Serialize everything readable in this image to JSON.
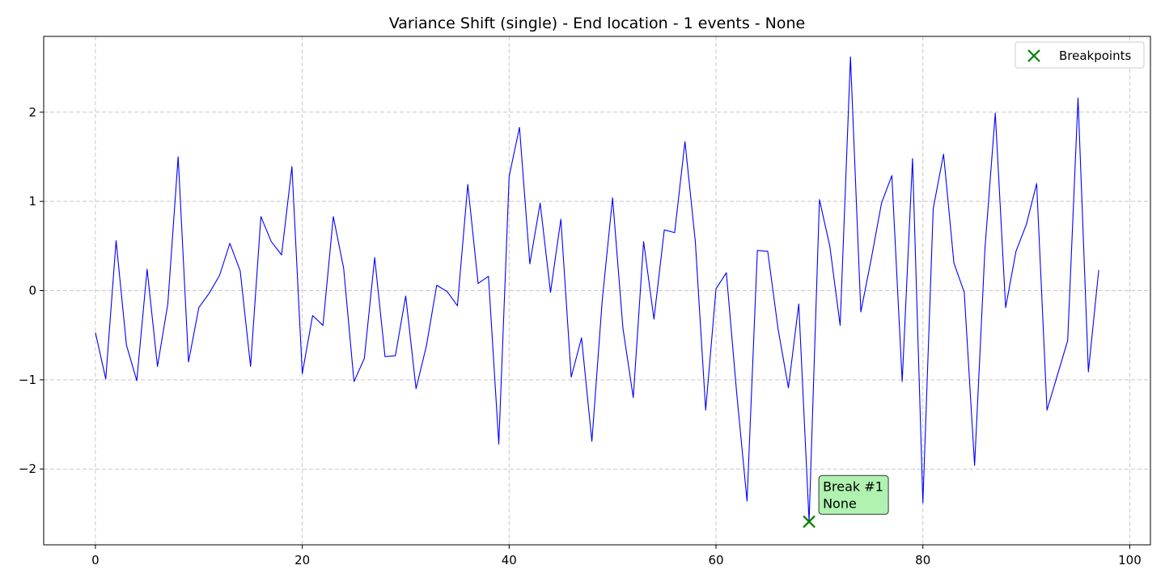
{
  "colors": {
    "line": "#0000ff",
    "marker": "#008000",
    "grid": "#c8c8c8",
    "annotation_fill": "#b0f2b0",
    "annotation_edge": "#333333",
    "axes": "#000000"
  },
  "chart_data": {
    "type": "line",
    "title": "Variance Shift (single) - End location - 1 events - None",
    "xlabel": "",
    "ylabel": "",
    "xlim": [
      -5,
      102
    ],
    "ylim": [
      -2.85,
      2.85
    ],
    "xticks": [
      0,
      20,
      40,
      60,
      80,
      100
    ],
    "xtick_labels": [
      "0",
      "20",
      "40",
      "60",
      "80",
      "100"
    ],
    "yticks": [
      -2,
      -1,
      0,
      1,
      2
    ],
    "ytick_labels": [
      "−2",
      "−1",
      "0",
      "1",
      "2"
    ],
    "grid": true,
    "legend": {
      "placement": "top-right",
      "entries": [
        "Breakpoints"
      ]
    },
    "series": [
      {
        "x": [
          0,
          1,
          2,
          3,
          4,
          5,
          6,
          7,
          8,
          9,
          10,
          11,
          12,
          13,
          14,
          15,
          16,
          17,
          18,
          19,
          20,
          21,
          22,
          23,
          24,
          25,
          26,
          27,
          28,
          29,
          30,
          31,
          32,
          33,
          34,
          35,
          36,
          37,
          38,
          39,
          40,
          41,
          42,
          43,
          44,
          45,
          46,
          47,
          48,
          49,
          50,
          51,
          52,
          53,
          54,
          55,
          56,
          57,
          58,
          59,
          60,
          61,
          62,
          63,
          64,
          65,
          66,
          67,
          68,
          69,
          70,
          71,
          72,
          73,
          74,
          75,
          76,
          77,
          78,
          79,
          80,
          81,
          82,
          83,
          84,
          85,
          86,
          87,
          88,
          89,
          90,
          91,
          92,
          93,
          94,
          95,
          96,
          97
        ],
        "values": [
          -0.47,
          -0.99,
          0.56,
          -0.61,
          -1.01,
          0.24,
          -0.85,
          -0.15,
          1.5,
          -0.8,
          -0.19,
          -0.03,
          0.17,
          0.53,
          0.22,
          -0.85,
          0.83,
          0.55,
          0.4,
          1.39,
          -0.93,
          -0.28,
          -0.39,
          0.83,
          0.25,
          -1.02,
          -0.76,
          0.37,
          -0.74,
          -0.73,
          -0.06,
          -1.1,
          -0.62,
          0.06,
          -0.01,
          -0.17,
          1.19,
          0.08,
          0.16,
          -1.72,
          1.28,
          1.83,
          0.3,
          0.98,
          -0.02,
          0.8,
          -0.97,
          -0.53,
          -1.69,
          -0.11,
          1.04,
          -0.42,
          -1.2,
          0.55,
          -0.32,
          0.68,
          0.65,
          1.67,
          0.55,
          -1.34,
          0.02,
          0.2,
          -1.15,
          -2.36,
          0.45,
          0.44,
          -0.43,
          -1.09,
          -0.15,
          -2.59,
          1.02,
          0.5,
          -0.39,
          2.62,
          -0.24,
          0.35,
          0.98,
          1.29,
          -1.02,
          1.48,
          -2.38,
          0.92,
          1.53,
          0.31,
          -0.02,
          -1.96,
          0.47,
          1.99,
          -0.19,
          0.44,
          0.74,
          1.2,
          -1.34,
          -0.95,
          -0.56,
          2.16,
          -0.91,
          0.23
        ]
      }
    ],
    "breakpoints": [
      {
        "x": 69,
        "y": -2.59,
        "label_lines": [
          "Break #1",
          "None"
        ]
      }
    ]
  }
}
